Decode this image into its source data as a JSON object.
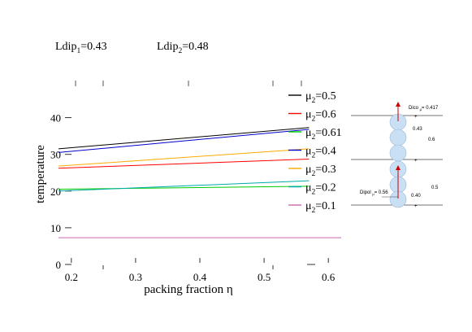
{
  "chart_data": {
    "type": "line",
    "xlabel": "packing fraction η",
    "ylabel": "temperature",
    "xlim": [
      0.18,
      0.62
    ],
    "ylim": [
      0,
      45
    ],
    "xticks": [
      "0.2",
      "0.3",
      "0.4",
      "0.5",
      "0.6"
    ],
    "yticks": [
      "0",
      "10",
      "20",
      "30",
      "40"
    ],
    "top_labels": [
      {
        "base": "Ldip",
        "sub": "1",
        "rest": "=0.43"
      },
      {
        "base": "Ldip",
        "sub": "2",
        "rest": "=0.48"
      }
    ],
    "legend_position": "right",
    "series": [
      {
        "name": "μ2=0.5",
        "label_base": "μ",
        "label_sub": "2",
        "label_rest": "=0.5",
        "color": "#000000",
        "x": [
          0.18,
          0.57
        ],
        "y": [
          31.5,
          37.3
        ]
      },
      {
        "name": "μ2=0.6",
        "label_base": "μ",
        "label_sub": "2",
        "label_rest": "=0.6",
        "color": "#ff0000",
        "x": [
          0.18,
          0.57
        ],
        "y": [
          26.2,
          28.7
        ]
      },
      {
        "name": "μ2=0.61",
        "label_base": "μ",
        "label_sub": "2",
        "label_rest": "=0.61",
        "color": "#00cc00",
        "x": [
          0.18,
          0.57
        ],
        "y": [
          20.5,
          21.3
        ]
      },
      {
        "name": "μ2=0.4",
        "label_base": "μ",
        "label_sub": "2",
        "label_rest": "=0.4",
        "color": "#0000cc",
        "x": [
          0.18,
          0.57
        ],
        "y": [
          30.5,
          36.8
        ]
      },
      {
        "name": "μ2=0.3",
        "label_base": "μ",
        "label_sub": "2",
        "label_rest": "=0.3",
        "color": "#ffaa00",
        "x": [
          0.18,
          0.57
        ],
        "y": [
          26.8,
          31.5
        ]
      },
      {
        "name": "μ2=0.2",
        "label_base": "μ",
        "label_sub": "2",
        "label_rest": "=0.2",
        "color": "#00aaaa",
        "x": [
          0.18,
          0.57
        ],
        "y": [
          20.0,
          22.8
        ]
      },
      {
        "name": "μ2=0.1",
        "label_base": "μ",
        "label_sub": "2",
        "label_rest": "=0.1",
        "color": "#cc66aa",
        "x": [
          0.18,
          0.62
        ],
        "y": [
          7.3,
          7.3
        ]
      }
    ],
    "inset": {
      "dipole_top_label": "Dico",
      "dipole_top_sub": "μ",
      "dipole_top_value": "= 0.417",
      "dipole_bottom_label": "Dipol",
      "dipole_bottom_sub": "μ",
      "dipole_bottom_value": "= 0.56",
      "dim_a": "0.43",
      "dim_b": "0.6",
      "dim_c": "0.5",
      "dim_d": "0.40"
    }
  }
}
